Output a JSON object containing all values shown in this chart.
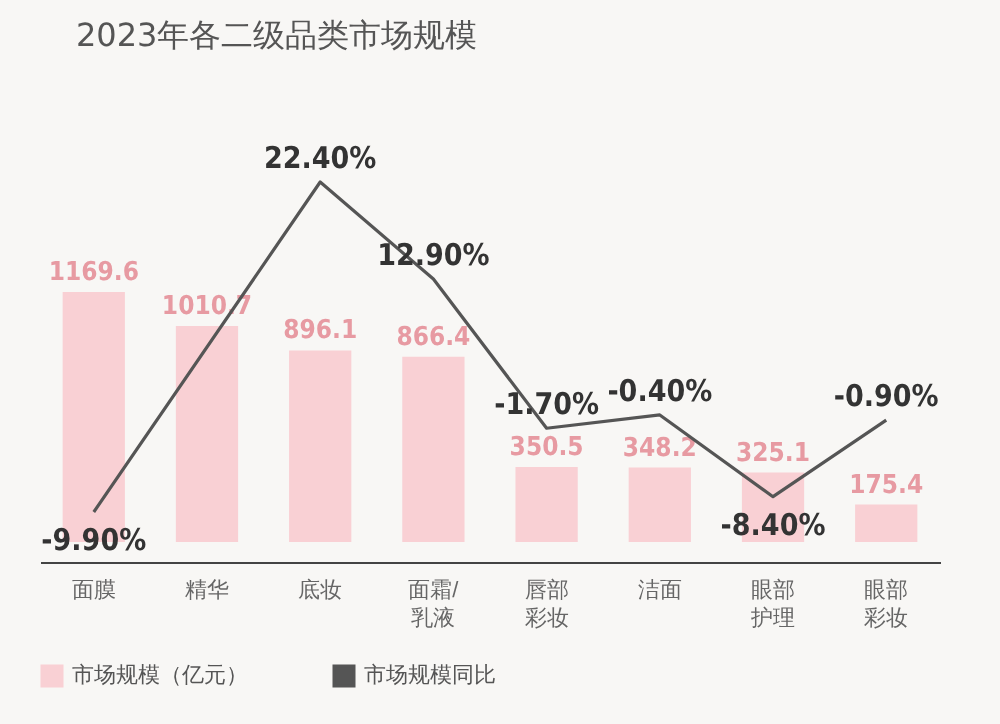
{
  "chart_data": {
    "type": "bar",
    "title": "2023年各二级品类市场规模",
    "categories": [
      "面膜",
      "精华",
      "底妆",
      "面霜/乳液",
      "唇部彩妆",
      "洁面",
      "眼部护理",
      "眼部彩妆"
    ],
    "series": [
      {
        "name": "市场规模（亿元）",
        "color": "#f9d0d4",
        "values": [
          1169.6,
          1010.7,
          896.1,
          866.4,
          350.5,
          348.2,
          325.1,
          175.4
        ],
        "value_labels": [
          "1169.6",
          "1010.7",
          "896.1",
          "866.4",
          "350.5",
          "348.2",
          "325.1",
          "175.4"
        ]
      },
      {
        "name": "市场规模同比",
        "type": "line",
        "axis": "y2",
        "color": "#555555",
        "values": [
          -9.9,
          null,
          22.4,
          12.9,
          -1.7,
          -0.4,
          -8.4,
          -0.9
        ],
        "value_labels": [
          "-9.90%",
          null,
          "22.40%",
          "12.90%",
          "-1.70%",
          "-0.40%",
          "-8.40%",
          "-0.90%"
        ]
      }
    ],
    "legend": "bottom",
    "grid": false
  }
}
